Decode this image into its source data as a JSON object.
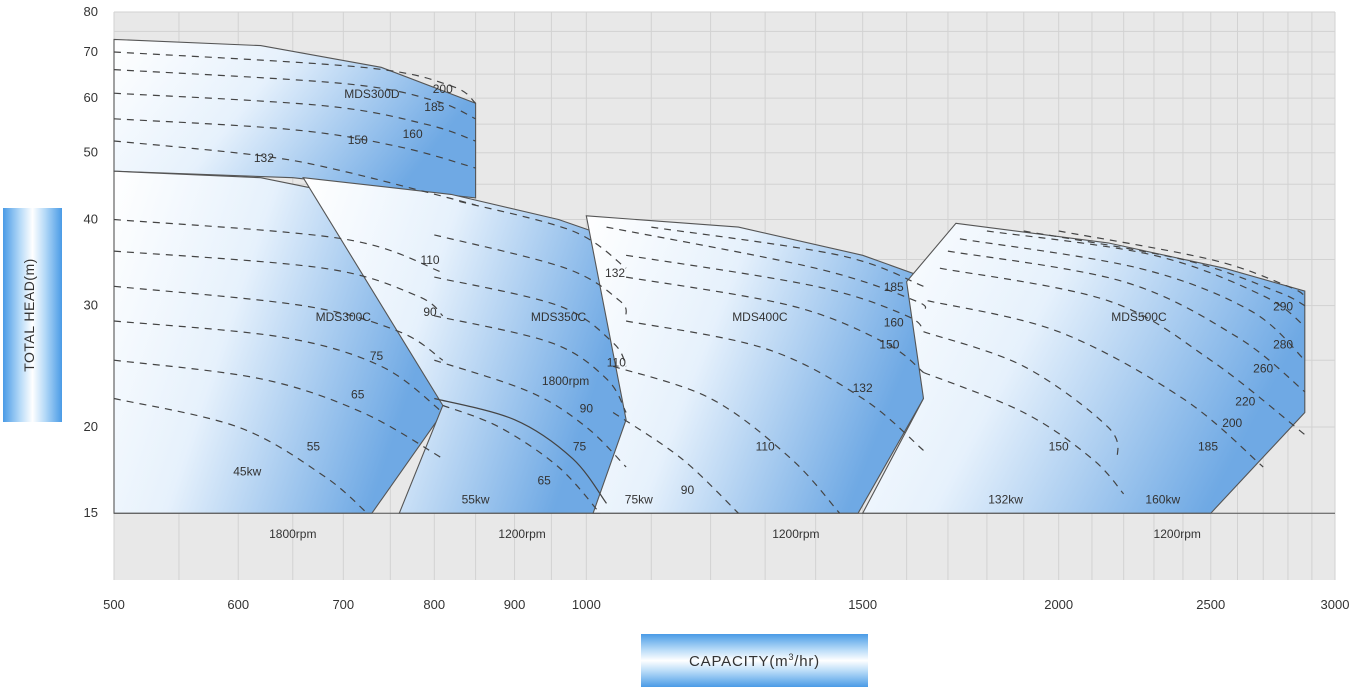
{
  "chart_data": {
    "type": "area",
    "xlabel_prefix": "CAPACITY(m",
    "xlabel_sup": "3",
    "xlabel_suffix": "/hr)",
    "ylabel": "TOTAL HEAD(m)",
    "x_scale": "log",
    "y_scale": "log",
    "xlim": [
      500,
      3000
    ],
    "ylim": [
      12,
      80
    ],
    "x_ticks": [
      500,
      600,
      700,
      800,
      900,
      1000,
      1500,
      2000,
      2500,
      3000
    ],
    "y_ticks": [
      15,
      20,
      30,
      40,
      50,
      60,
      70,
      80
    ],
    "grid": true,
    "series": [
      {
        "name": "MDS300D",
        "color": "#6fa9e4",
        "outline": [
          [
            500,
            73
          ],
          [
            620,
            71.5
          ],
          [
            740,
            66.5
          ],
          [
            850,
            59
          ],
          [
            850,
            43
          ],
          [
            650,
            46
          ],
          [
            500,
            47
          ]
        ],
        "kw_curves": [
          {
            "kw": "132",
            "points": [
              [
                500,
                52
              ],
              [
                620,
                49.5
              ],
              [
                700,
                47
              ],
              [
                850,
                42
              ]
            ],
            "label_at": [
              623,
              48.5
            ]
          },
          {
            "kw": "150",
            "points": [
              [
                500,
                56
              ],
              [
                650,
                54
              ],
              [
                760,
                51
              ],
              [
                850,
                47.5
              ]
            ],
            "label_at": [
              715,
              51.5
            ]
          },
          {
            "kw": "160",
            "points": [
              [
                500,
                61
              ],
              [
                680,
                58.5
              ],
              [
                790,
                55
              ],
              [
                850,
                52
              ]
            ],
            "label_at": [
              775,
              52.5
            ]
          },
          {
            "kw": "185",
            "points": [
              [
                500,
                66
              ],
              [
                700,
                63
              ],
              [
                800,
                59.5
              ],
              [
                850,
                56
              ]
            ],
            "label_at": [
              800,
              57.5
            ]
          },
          {
            "kw": "200",
            "points": [
              [
                500,
                70
              ],
              [
                720,
                66.5
              ],
              [
                820,
                62.5
              ],
              [
                850,
                59
              ]
            ],
            "label_at": [
              810,
              61
            ]
          }
        ],
        "model_label_at": [
          730,
          60
        ]
      },
      {
        "name": "MDS300C",
        "color": "#6fa9e4",
        "outline": [
          [
            500,
            47
          ],
          [
            620,
            46
          ],
          [
            700,
            43.5
          ],
          [
            810,
            37.5
          ],
          [
            810,
            21
          ],
          [
            730,
            15
          ],
          [
            500,
            15
          ]
        ],
        "kw_curves": [
          {
            "kw": "45kw",
            "points": [
              [
                500,
                22
              ],
              [
                600,
                20
              ],
              [
                680,
                17
              ],
              [
                725,
                15
              ]
            ],
            "label_at": [
              608,
              17
            ]
          },
          {
            "kw": "55",
            "points": [
              [
                500,
                25
              ],
              [
                620,
                23.5
              ],
              [
                720,
                21
              ],
              [
                810,
                18
              ]
            ],
            "label_at": [
              670,
              18.5
            ]
          },
          {
            "kw": "65",
            "points": [
              [
                500,
                28.5
              ],
              [
                640,
                27
              ],
              [
                740,
                24.5
              ],
              [
                810,
                21
              ]
            ],
            "label_at": [
              715,
              22
            ]
          },
          {
            "kw": "75",
            "points": [
              [
                500,
                32
              ],
              [
                660,
                30
              ],
              [
                760,
                27.5
              ],
              [
                810,
                25
              ]
            ],
            "label_at": [
              735,
              25
            ]
          },
          {
            "kw": "90",
            "points": [
              [
                500,
                36
              ],
              [
                680,
                34
              ],
              [
                780,
                31
              ],
              [
                810,
                29
              ]
            ],
            "label_at": [
              795,
              29
            ]
          },
          {
            "kw": "110",
            "points": [
              [
                500,
                40
              ],
              [
                700,
                37.5
              ],
              [
                810,
                33.5
              ]
            ],
            "label_at": [
              795,
              34.5
            ]
          }
        ],
        "model_label_at": [
          700,
          28.5
        ]
      },
      {
        "name": "MDS350C",
        "color": "#6fa9e4",
        "outline": [
          [
            660,
            46
          ],
          [
            820,
            43.5
          ],
          [
            960,
            40
          ],
          [
            1060,
            37
          ],
          [
            1060,
            20.5
          ],
          [
            1020,
            15
          ],
          [
            760,
            15
          ],
          [
            810,
            21.5
          ]
        ],
        "kw_curves": [
          {
            "kw": "55kw",
            "points": [
              [
                810,
                21.5
              ],
              [
                880,
                20
              ],
              [
                960,
                17.5
              ],
              [
                1020,
                15
              ]
            ],
            "label_at": [
              850,
              15.5
            ]
          },
          {
            "kw": "65",
            "points": [
              [
                800,
                25
              ],
              [
                920,
                22.5
              ],
              [
                1000,
                20
              ],
              [
                1060,
                17.5
              ]
            ],
            "label_at": [
              940,
              16.5
            ]
          },
          {
            "kw": "75",
            "points": [
              [
                800,
                29
              ],
              [
                950,
                26.5
              ],
              [
                1030,
                23.5
              ],
              [
                1060,
                21
              ]
            ],
            "label_at": [
              990,
              18.5
            ]
          },
          {
            "kw": "90",
            "points": [
              [
                800,
                33
              ],
              [
                960,
                30
              ],
              [
                1040,
                26.5
              ],
              [
                1060,
                24.5
              ]
            ],
            "label_at": [
              1000,
              21
            ]
          },
          {
            "kw": "110",
            "points": [
              [
                800,
                38
              ],
              [
                970,
                34
              ],
              [
                1050,
                30.5
              ],
              [
                1060,
                29
              ]
            ],
            "label_at": [
              1045,
              24.5
            ]
          },
          {
            "kw": "132",
            "points": [
              [
                830,
                42.5
              ],
              [
                980,
                38.5
              ],
              [
                1060,
                34
              ]
            ],
            "label_at": [
              1043,
              33
            ]
          }
        ],
        "model_label_at": [
          960,
          28.5
        ],
        "extra_label": {
          "text": "1800rpm",
          "at": [
            970,
            23
          ]
        },
        "speed_curve": [
          [
            800,
            22
          ],
          [
            900,
            20.5
          ],
          [
            980,
            18
          ],
          [
            1030,
            15.5
          ]
        ]
      },
      {
        "name": "MDS400C",
        "color": "#6fa9e4",
        "outline": [
          [
            1000,
            40.5
          ],
          [
            1250,
            39
          ],
          [
            1500,
            35.5
          ],
          [
            1640,
            33
          ],
          [
            1640,
            22
          ],
          [
            1490,
            15
          ],
          [
            1010,
            15
          ],
          [
            1060,
            20.5
          ]
        ],
        "kw_curves": [
          {
            "kw": "75kw",
            "points": [
              [
                1040,
                21
              ],
              [
                1150,
                18
              ],
              [
                1250,
                15
              ]
            ],
            "label_at": [
              1080,
              15.5
            ]
          },
          {
            "kw": "90",
            "points": [
              [
                1040,
                24.5
              ],
              [
                1200,
                22
              ],
              [
                1350,
                18
              ],
              [
                1450,
                15
              ]
            ],
            "label_at": [
              1160,
              16
            ]
          },
          {
            "kw": "110",
            "points": [
              [
                1060,
                28.5
              ],
              [
                1300,
                26
              ],
              [
                1500,
                22
              ],
              [
                1640,
                18.5
              ]
            ],
            "label_at": [
              1300,
              18.5
            ]
          },
          {
            "kw": "132",
            "points": [
              [
                1060,
                33
              ],
              [
                1350,
                30
              ],
              [
                1550,
                26.5
              ],
              [
                1640,
                24
              ]
            ],
            "label_at": [
              1500,
              22.5
            ]
          },
          {
            "kw": "150",
            "points": [
              [
                1060,
                35.5
              ],
              [
                1400,
                32
              ],
              [
                1600,
                29
              ],
              [
                1640,
                27.5
              ]
            ],
            "label_at": [
              1560,
              26
            ]
          },
          {
            "kw": "160",
            "points": [
              [
                1030,
                39
              ],
              [
                1400,
                34
              ],
              [
                1620,
                30.5
              ],
              [
                1640,
                29.5
              ]
            ],
            "label_at": [
              1570,
              28
            ]
          },
          {
            "kw": "185",
            "points": [
              [
                1100,
                39
              ],
              [
                1450,
                35.5
              ],
              [
                1640,
                32
              ]
            ],
            "label_at": [
              1570,
              31.5
            ]
          }
        ],
        "model_label_at": [
          1290,
          28.5
        ]
      },
      {
        "name": "MDS500C",
        "color": "#6fa9e4",
        "outline": [
          [
            1720,
            39.5
          ],
          [
            2150,
            37
          ],
          [
            2550,
            34
          ],
          [
            2870,
            31.5
          ],
          [
            2870,
            21
          ],
          [
            2500,
            15
          ],
          [
            1500,
            15
          ],
          [
            1640,
            22
          ],
          [
            1600,
            32.5
          ]
        ],
        "kw_curves": [
          {
            "kw": "132kw",
            "points": [
              [
                1640,
                24
              ],
              [
                1900,
                21
              ],
              [
                2100,
                18
              ],
              [
                2200,
                16
              ]
            ],
            "label_at": [
              1850,
              15.5
            ]
          },
          {
            "kw": "150",
            "points": [
              [
                1640,
                27.5
              ],
              [
                1900,
                24.5
              ],
              [
                2150,
                20
              ],
              [
                2180,
                18
              ]
            ],
            "label_at": [
              2000,
              18.5
            ]
          },
          {
            "kw": "160kw",
            "points": [
              [
                1650,
                30.5
              ],
              [
                2000,
                27.5
              ],
              [
                2400,
                22
              ],
              [
                2700,
                17.5
              ]
            ],
            "label_at": [
              2330,
              15.5
            ]
          },
          {
            "kw": "185",
            "points": [
              [
                1680,
                34
              ],
              [
                2150,
                30.5
              ],
              [
                2500,
                25
              ],
              [
                2870,
                19.5
              ]
            ],
            "label_at": [
              2490,
              18.5
            ]
          },
          {
            "kw": "200",
            "points": [
              [
                1700,
                36
              ],
              [
                2200,
                32.5
              ],
              [
                2600,
                27
              ],
              [
                2870,
                22.5
              ]
            ],
            "label_at": [
              2580,
              20
            ]
          },
          {
            "kw": "220",
            "points": [
              [
                1730,
                37.5
              ],
              [
                2250,
                34
              ],
              [
                2650,
                29.5
              ],
              [
                2870,
                25
              ]
            ],
            "label_at": [
              2630,
              21.5
            ]
          },
          {
            "kw": "260",
            "points": [
              [
                1800,
                38.5
              ],
              [
                2300,
                35.5
              ],
              [
                2700,
                31
              ],
              [
                2870,
                28
              ]
            ],
            "label_at": [
              2700,
              24
            ]
          },
          {
            "kw": "280",
            "points": [
              [
                1900,
                38.5
              ],
              [
                2400,
                35
              ],
              [
                2750,
                31.5
              ],
              [
                2870,
                30
              ]
            ],
            "label_at": [
              2780,
              26
            ]
          },
          {
            "kw": "290",
            "points": [
              [
                2000,
                38.5
              ],
              [
                2500,
                35
              ],
              [
                2800,
                32
              ],
              [
                2870,
                31
              ]
            ],
            "label_at": [
              2780,
              29.5
            ]
          }
        ],
        "model_label_at": [
          2250,
          28.5
        ]
      }
    ],
    "rpm_labels": [
      {
        "text": "1800rpm",
        "at": [
          650,
          14
        ]
      },
      {
        "text": "1200rpm",
        "at": [
          910,
          14
        ]
      },
      {
        "text": "1200rpm",
        "at": [
          1360,
          14
        ]
      },
      {
        "text": "1200rpm",
        "at": [
          2380,
          14
        ]
      }
    ]
  }
}
